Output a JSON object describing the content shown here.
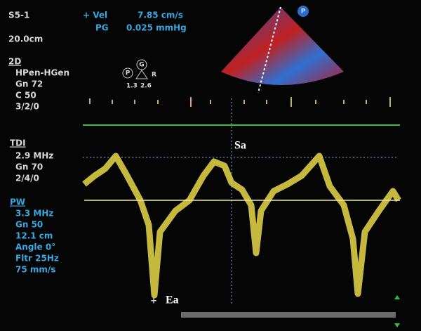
{
  "header": {
    "probe": "S5-1",
    "depth": "20.0cm",
    "vel_label": "+ Vel",
    "vel_value": "7.85 cm/s",
    "pg_label": "PG",
    "pg_value": "0.025 mmHg"
  },
  "mode_2d": {
    "title": "2D",
    "lines": [
      "HPen-HGen",
      "Gn 72",
      "C 50",
      "3/2/0"
    ]
  },
  "icons": {
    "p": "P",
    "g": "G",
    "r": "R",
    "left_value": "1.3",
    "right_value": "2.6",
    "sector_marker": "P"
  },
  "tdi": {
    "title": "TDI",
    "lines": [
      "2.9 MHz",
      "Gn 70",
      "2/4/0"
    ]
  },
  "pw": {
    "title": "PW",
    "lines": [
      "3.3 MHz",
      "Gn 50",
      "12.1 cm",
      "Angle 0°",
      "Fltr 25Hz",
      "75 mm/s"
    ]
  },
  "annotations": {
    "sa": "Sa",
    "ea": "Ea"
  }
}
